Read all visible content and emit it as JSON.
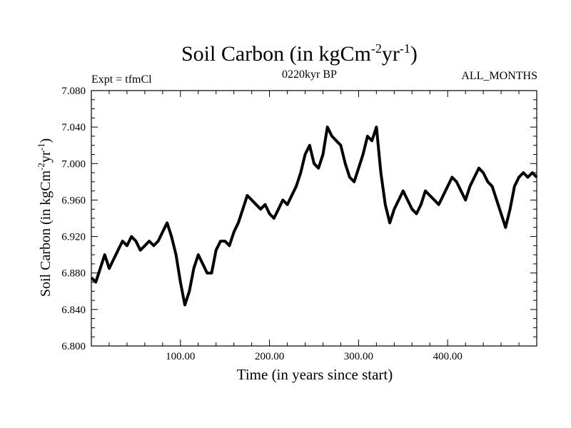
{
  "chart_data": {
    "type": "line",
    "title": "Soil Carbon (in kgCm",
    "title_exp1": "-2",
    "title_mid": "yr",
    "title_exp2": "-1",
    "title_end": ")",
    "left_label": "Expt = tfmCl",
    "subtitle": "0220kyr BP",
    "right_label": "ALL_MONTHS",
    "xlabel": "Time (in years since start)",
    "ylabel": "Soil Carbon (in kgCm",
    "ylabel_exp1": "-2",
    "ylabel_mid": "yr",
    "ylabel_exp2": "-1",
    "ylabel_end": ")",
    "xlim": [
      0,
      500
    ],
    "ylim": [
      6.8,
      7.08
    ],
    "x_ticks": [
      100,
      200,
      300,
      400
    ],
    "x_tick_labels": [
      "100.00",
      "200.00",
      "300.00",
      "400.00"
    ],
    "y_ticks": [
      6.8,
      6.84,
      6.88,
      6.92,
      6.96,
      7.0,
      7.04,
      7.08
    ],
    "y_tick_labels": [
      "6.800",
      "6.840",
      "6.880",
      "6.920",
      "6.960",
      "7.000",
      "7.040",
      "7.080"
    ],
    "grid": false,
    "line_color": "#000000",
    "series": [
      {
        "x": [
          0,
          5,
          10,
          15,
          20,
          25,
          30,
          35,
          40,
          45,
          50,
          55,
          60,
          65,
          70,
          75,
          80,
          85,
          90,
          95,
          100,
          105,
          110,
          115,
          120,
          125,
          130,
          135,
          140,
          145,
          150,
          155,
          160,
          165,
          170,
          175,
          180,
          185,
          190,
          195,
          200,
          205,
          210,
          215,
          220,
          225,
          230,
          235,
          240,
          245,
          250,
          255,
          260,
          265,
          270,
          275,
          280,
          285,
          290,
          295,
          300,
          305,
          310,
          315,
          320,
          325,
          330,
          335,
          340,
          345,
          350,
          355,
          360,
          365,
          370,
          375,
          380,
          385,
          390,
          395,
          400,
          405,
          410,
          415,
          420,
          425,
          430,
          435,
          440,
          445,
          450,
          455,
          460,
          465,
          470,
          475,
          480,
          485,
          490,
          495,
          500
        ],
        "values": [
          6.875,
          6.87,
          6.885,
          6.9,
          6.885,
          6.895,
          6.905,
          6.915,
          6.91,
          6.92,
          6.915,
          6.905,
          6.91,
          6.915,
          6.91,
          6.915,
          6.925,
          6.935,
          6.92,
          6.9,
          6.87,
          6.845,
          6.86,
          6.885,
          6.9,
          6.89,
          6.88,
          6.88,
          6.905,
          6.915,
          6.915,
          6.91,
          6.925,
          6.935,
          6.95,
          6.965,
          6.96,
          6.955,
          6.95,
          6.955,
          6.945,
          6.94,
          6.95,
          6.96,
          6.955,
          6.965,
          6.975,
          6.99,
          7.01,
          7.02,
          7.0,
          6.995,
          7.01,
          7.04,
          7.03,
          7.025,
          7.02,
          7.0,
          6.985,
          6.98,
          6.995,
          7.01,
          7.03,
          7.025,
          7.04,
          6.99,
          6.955,
          6.935,
          6.95,
          6.96,
          6.97,
          6.96,
          6.95,
          6.945,
          6.955,
          6.97,
          6.965,
          6.96,
          6.955,
          6.965,
          6.975,
          6.985,
          6.98,
          6.97,
          6.96,
          6.975,
          6.985,
          6.995,
          6.99,
          6.98,
          6.975,
          6.96,
          6.945,
          6.93,
          6.95,
          6.975,
          6.985,
          6.99,
          6.985,
          6.99,
          6.985
        ]
      }
    ]
  }
}
